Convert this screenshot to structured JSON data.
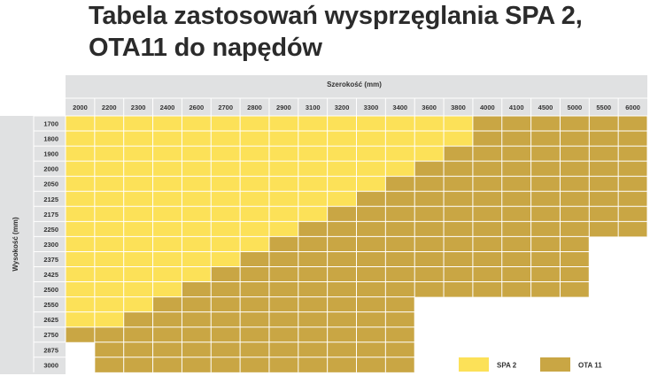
{
  "title": {
    "line1": "Tabela zastosowań wysprzęglania SPA 2,",
    "line2": "OTA11 do napędów"
  },
  "colors": {
    "spa2": "#FCE158",
    "ota11": "#C9A644",
    "header_bg": "#E0E1E2",
    "grid_line": "#FFFFFF"
  },
  "chart_data": {
    "type": "table",
    "xlabel": "Szerokość (mm)",
    "ylabel": "Wysokość (mm)",
    "widths": [
      2000,
      2200,
      2300,
      2400,
      2600,
      2700,
      2800,
      2900,
      3100,
      3200,
      3300,
      3400,
      3600,
      3800,
      4000,
      4100,
      4500,
      5000,
      5500,
      6000
    ],
    "heights": [
      1700,
      1800,
      1900,
      2000,
      2050,
      2125,
      2175,
      2250,
      2300,
      2375,
      2425,
      2500,
      2550,
      2625,
      2750,
      2875,
      3000
    ],
    "legend": [
      {
        "key": "spa2",
        "label": "SPA 2"
      },
      {
        "key": "ota11",
        "label": "OTA 11"
      }
    ],
    "rows": [
      {
        "height": 1700,
        "spa2_until_width": 3800,
        "max_width": 6000
      },
      {
        "height": 1800,
        "spa2_until_width": 3800,
        "max_width": 6000
      },
      {
        "height": 1900,
        "spa2_until_width": 3600,
        "max_width": 6000
      },
      {
        "height": 2000,
        "spa2_until_width": 3400,
        "max_width": 6000
      },
      {
        "height": 2050,
        "spa2_until_width": 3300,
        "max_width": 6000
      },
      {
        "height": 2125,
        "spa2_until_width": 3200,
        "max_width": 6000
      },
      {
        "height": 2175,
        "spa2_until_width": 3100,
        "max_width": 6000
      },
      {
        "height": 2250,
        "spa2_until_width": 2900,
        "max_width": 6000
      },
      {
        "height": 2300,
        "spa2_until_width": 2800,
        "max_width": 5000
      },
      {
        "height": 2375,
        "spa2_until_width": 2700,
        "max_width": 5000
      },
      {
        "height": 2425,
        "spa2_until_width": 2600,
        "max_width": 5000
      },
      {
        "height": 2500,
        "spa2_until_width": 2400,
        "max_width": 5000
      },
      {
        "height": 2550,
        "spa2_until_width": 2300,
        "max_width": 3400
      },
      {
        "height": 2625,
        "spa2_until_width": 2200,
        "max_width": 3400
      },
      {
        "height": 2750,
        "spa2_until_width": null,
        "max_width": 3400
      },
      {
        "height": 2875,
        "spa2_until_width": null,
        "min_width": 2200,
        "max_width": 3400
      },
      {
        "height": 3000,
        "spa2_until_width": null,
        "min_width": 2200,
        "max_width": 3400
      }
    ]
  }
}
